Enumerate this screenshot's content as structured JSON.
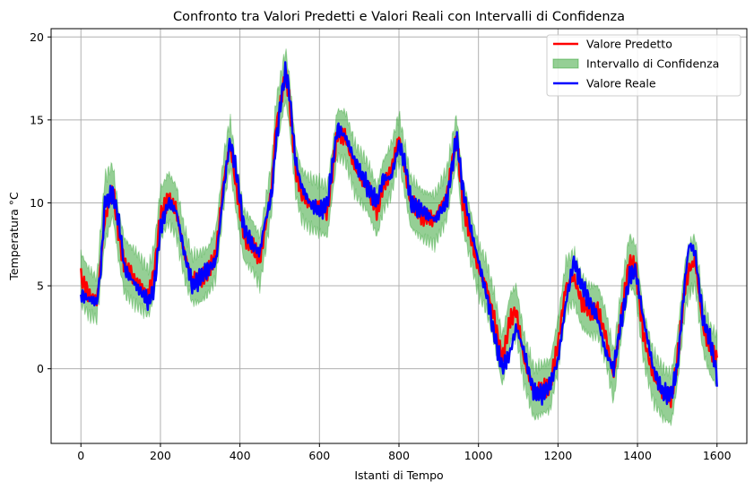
{
  "chart_data": {
    "type": "line",
    "title": "Confronto tra Valori Predetti e Valori Reali con Intervalli di Confidenza",
    "xlabel": "Istanti di Tempo",
    "ylabel": "Temperatura °C",
    "xlim": [
      -75,
      1675
    ],
    "ylim": [
      -4.5,
      20.5
    ],
    "xticks": [
      0,
      200,
      400,
      600,
      800,
      1000,
      1200,
      1400,
      1600
    ],
    "yticks": [
      0,
      5,
      10,
      15,
      20
    ],
    "grid": true,
    "legend_position": "top-right",
    "colors": {
      "predicted": "#ff0000",
      "band": "#2ca02c",
      "real": "#0000ff",
      "grid": "#b0b0b0"
    },
    "x": [
      0,
      20,
      40,
      50,
      60,
      80,
      95,
      110,
      140,
      170,
      185,
      200,
      220,
      240,
      260,
      280,
      300,
      320,
      340,
      360,
      375,
      390,
      410,
      430,
      450,
      460,
      480,
      490,
      505,
      515,
      525,
      540,
      555,
      575,
      600,
      620,
      645,
      665,
      690,
      720,
      745,
      760,
      780,
      800,
      815,
      830,
      860,
      890,
      920,
      945,
      960,
      980,
      1000,
      1020,
      1040,
      1060,
      1080,
      1095,
      1115,
      1140,
      1160,
      1180,
      1200,
      1220,
      1240,
      1260,
      1280,
      1300,
      1320,
      1340,
      1360,
      1380,
      1395,
      1415,
      1440,
      1465,
      1485,
      1500,
      1520,
      1530,
      1545,
      1565,
      1585,
      1600
    ],
    "series": [
      {
        "name": "Valore Predetto",
        "values": [
          5.5,
          4.5,
          4.0,
          6.5,
          9.0,
          11.0,
          8.0,
          6.2,
          5.3,
          4.5,
          6.0,
          9.2,
          10.3,
          9.5,
          7.0,
          5.3,
          5.5,
          5.8,
          7.0,
          11.5,
          13.5,
          11.0,
          8.0,
          7.5,
          6.5,
          8.0,
          11.0,
          14.5,
          16.5,
          17.8,
          16.0,
          12.0,
          10.5,
          10.0,
          9.8,
          9.5,
          14.2,
          14.0,
          12.0,
          11.0,
          9.5,
          11.0,
          12.0,
          14.0,
          12.0,
          10.0,
          9.2,
          9.0,
          10.5,
          14.0,
          10.0,
          8.0,
          6.0,
          5.0,
          3.0,
          0.5,
          3.0,
          3.5,
          0.5,
          -1.5,
          -1.2,
          -1.0,
          1.5,
          5.0,
          5.5,
          4.0,
          3.5,
          3.5,
          2.0,
          -0.5,
          3.5,
          6.5,
          6.0,
          2.0,
          -0.5,
          -1.5,
          -1.8,
          0.5,
          5.0,
          6.0,
          6.5,
          2.5,
          1.0,
          0.5
        ]
      },
      {
        "name": "Valore Reale",
        "values": [
          4.5,
          4.2,
          4.0,
          6.0,
          10.0,
          10.5,
          9.0,
          6.0,
          5.0,
          4.0,
          5.0,
          8.5,
          10.0,
          9.5,
          7.0,
          5.0,
          5.5,
          6.0,
          6.5,
          11.0,
          13.8,
          12.0,
          8.5,
          7.5,
          7.0,
          8.5,
          10.5,
          13.5,
          16.5,
          18.0,
          16.5,
          12.5,
          11.0,
          10.0,
          9.5,
          10.0,
          14.5,
          14.0,
          12.5,
          11.0,
          10.0,
          11.5,
          11.5,
          13.5,
          12.5,
          10.0,
          9.5,
          9.0,
          10.0,
          14.0,
          11.0,
          8.5,
          6.5,
          4.5,
          2.0,
          0.0,
          1.0,
          2.5,
          1.0,
          -1.5,
          -1.5,
          -1.0,
          0.5,
          4.0,
          6.5,
          5.0,
          4.0,
          3.0,
          1.0,
          0.0,
          3.0,
          5.5,
          6.0,
          3.0,
          0.0,
          -1.5,
          -1.5,
          0.0,
          5.5,
          7.5,
          7.0,
          3.0,
          1.5,
          -0.5
        ]
      },
      {
        "name": "Intervallo di Confidenza",
        "lower": [
          4.0,
          3.2,
          3.0,
          5.2,
          7.5,
          9.2,
          6.5,
          4.5,
          3.8,
          3.2,
          4.5,
          7.8,
          8.8,
          8.0,
          5.5,
          4.0,
          4.0,
          4.5,
          5.5,
          10.0,
          12.2,
          9.5,
          6.5,
          6.0,
          5.0,
          6.5,
          9.5,
          13.0,
          15.0,
          16.2,
          14.5,
          10.5,
          9.0,
          8.5,
          8.2,
          8.0,
          12.8,
          12.5,
          10.5,
          9.5,
          8.0,
          9.5,
          10.5,
          12.5,
          10.5,
          8.5,
          7.8,
          7.5,
          9.0,
          12.5,
          8.5,
          6.5,
          4.5,
          3.5,
          1.5,
          -1.0,
          1.5,
          2.0,
          -1.0,
          -3.0,
          -2.7,
          -2.5,
          0.0,
          3.5,
          4.0,
          2.5,
          2.0,
          2.0,
          0.5,
          -2.0,
          2.0,
          5.0,
          4.5,
          0.5,
          -2.0,
          -3.0,
          -3.3,
          -1.0,
          3.5,
          4.5,
          5.0,
          1.0,
          -0.5,
          -1.0
        ],
        "upper": [
          7.0,
          6.0,
          5.5,
          8.5,
          11.5,
          12.3,
          9.5,
          7.8,
          7.0,
          6.0,
          7.5,
          10.8,
          11.8,
          11.0,
          8.5,
          6.8,
          7.0,
          7.3,
          8.5,
          13.0,
          15.0,
          12.5,
          9.5,
          9.0,
          8.0,
          9.5,
          12.5,
          16.0,
          18.0,
          19.2,
          17.5,
          13.5,
          12.0,
          11.5,
          11.3,
          11.0,
          15.6,
          15.5,
          13.5,
          12.5,
          11.0,
          12.5,
          13.5,
          15.3,
          13.5,
          11.5,
          10.7,
          10.5,
          12.0,
          15.3,
          11.5,
          9.5,
          7.5,
          6.5,
          4.5,
          2.0,
          4.5,
          5.0,
          2.0,
          0.0,
          0.3,
          0.5,
          3.0,
          6.5,
          7.0,
          5.5,
          5.0,
          5.0,
          3.5,
          1.0,
          5.0,
          8.0,
          7.5,
          3.5,
          1.0,
          0.0,
          -0.3,
          2.0,
          6.5,
          7.5,
          8.0,
          4.0,
          2.5,
          2.0
        ]
      }
    ]
  }
}
